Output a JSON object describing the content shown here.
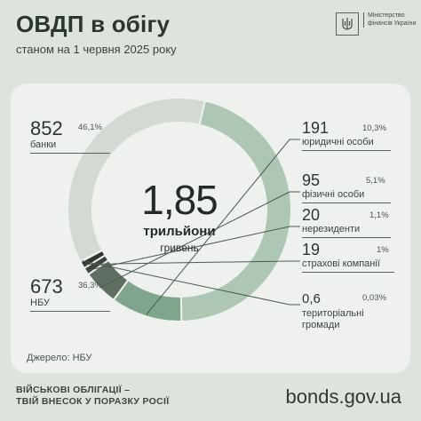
{
  "header": {
    "title": "ОВДП в обігу",
    "subtitle": "станом на 1 червня 2025 року",
    "logo_text": "Міністерство фінансів України"
  },
  "center": {
    "value": "1,85",
    "unit": "трильйони",
    "currency": "гривень"
  },
  "chart_data": {
    "type": "pie",
    "categories": [
      "банки",
      "юридичні особи",
      "фізичні особи",
      "нерезиденти",
      "страхові компанії",
      "територіальні громади",
      "НБУ"
    ],
    "values": [
      852,
      191,
      95,
      20,
      19,
      0.6,
      673
    ],
    "value_labels": [
      "852",
      "191",
      "95",
      "20",
      "19",
      "0,6",
      "673"
    ],
    "percent_labels": [
      "46,1%",
      "10,3%",
      "5,1%",
      "1,1%",
      "1%",
      "0,03%",
      "36,3%"
    ],
    "colors": [
      "#aec7b5",
      "#7fa68d",
      "#5f6e62",
      "#3d463f",
      "#2c3530",
      "#1f2622",
      "#d2dad3"
    ],
    "donut": true
  },
  "source": "Джерело: НБУ",
  "footer": {
    "slogan_line1": "ВІЙСЬКОВІ ОБЛІГАЦІЇ –",
    "slogan_line2": "ТВІЙ ВНЕСОК У ПОРАЗКУ РОСІЇ",
    "site": "bonds.gov.ua"
  }
}
